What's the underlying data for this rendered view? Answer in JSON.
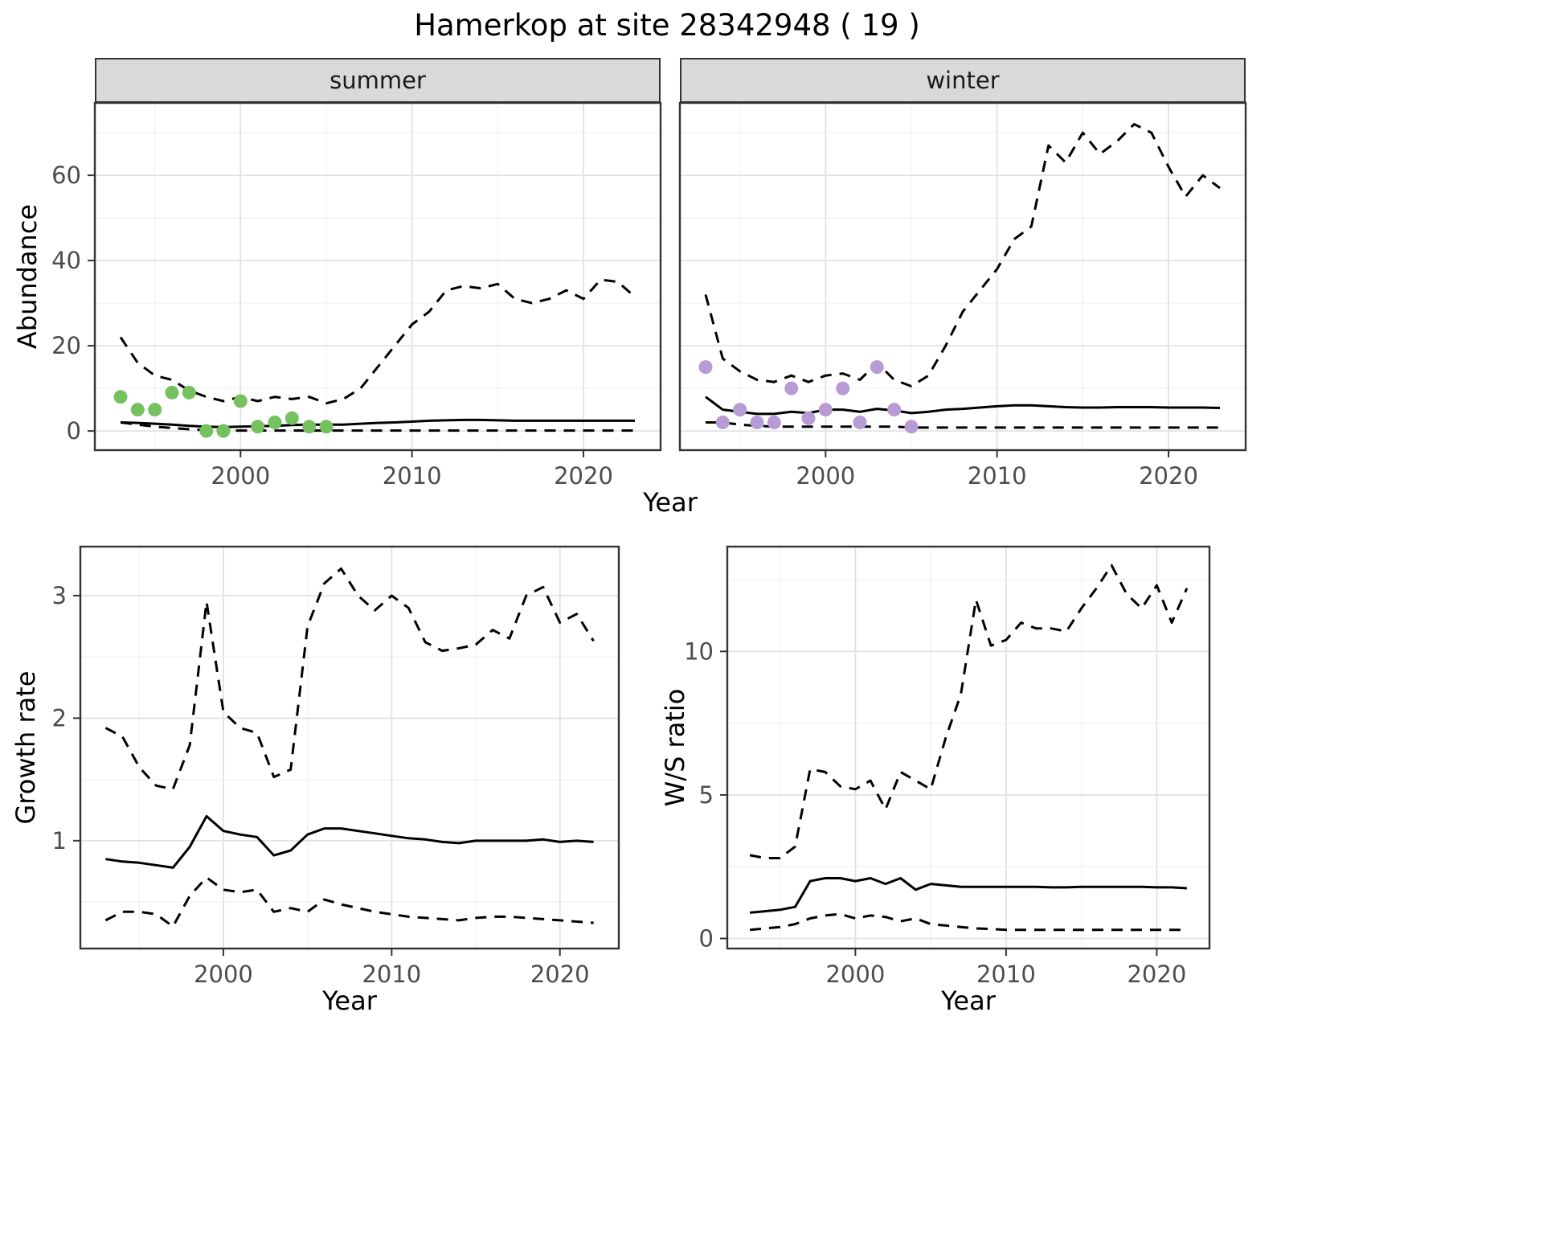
{
  "title": "Hamerkop at site 28342948 ( 19 )",
  "colors": {
    "summer_points": "#76c15f",
    "winter_points": "#b79bd4",
    "line": "#000000",
    "strip_bg": "#d9d9d9",
    "grid_major": "#e2e2e2",
    "grid_minor": "#efefef",
    "panel_border": "#333333",
    "tick_label": "#4d4d4d"
  },
  "chart_data": [
    {
      "id": "abundance-summer",
      "type": "line",
      "facet_label": "summer",
      "ylabel": "Abundance",
      "xlabel": "Year",
      "xlim": [
        1991.5,
        2024.5
      ],
      "ylim": [
        -4.5,
        77
      ],
      "xticks": [
        2000,
        2010,
        2020
      ],
      "yticks": [
        0,
        20,
        40,
        60
      ],
      "xticks_minor": [
        1995,
        2005,
        2015
      ],
      "yticks_minor": [
        10,
        30,
        50,
        70
      ],
      "years": [
        1993,
        1994,
        1995,
        1996,
        1997,
        1998,
        1999,
        2000,
        2001,
        2002,
        2003,
        2004,
        2005,
        2006,
        2007,
        2008,
        2009,
        2010,
        2011,
        2012,
        2013,
        2014,
        2015,
        2016,
        2017,
        2018,
        2019,
        2020,
        2021,
        2022,
        2023
      ],
      "series": [
        {
          "name": "median",
          "style": "solid",
          "values": [
            2.0,
            1.9,
            1.7,
            1.5,
            1.2,
            1.0,
            0.9,
            1.0,
            1.1,
            1.2,
            1.4,
            1.5,
            1.5,
            1.5,
            1.7,
            1.9,
            2.0,
            2.2,
            2.4,
            2.5,
            2.6,
            2.6,
            2.5,
            2.4,
            2.4,
            2.4,
            2.4,
            2.4,
            2.4,
            2.4,
            2.4
          ]
        },
        {
          "name": "upper-ci",
          "style": "dashed",
          "values": [
            22,
            16,
            13,
            12,
            9.5,
            8,
            7,
            8,
            7,
            8,
            7.5,
            8,
            6.5,
            7.5,
            10,
            15,
            20,
            25,
            28,
            33,
            34,
            33.5,
            34.5,
            31,
            30,
            31,
            33,
            31,
            35.5,
            35,
            31.5
          ]
        },
        {
          "name": "lower-ci",
          "style": "dashed",
          "values": [
            2,
            1.5,
            1,
            0.7,
            0.4,
            0.2,
            0.1,
            0.1,
            0.1,
            0.1,
            0.1,
            0.1,
            0.1,
            0.1,
            0.1,
            0.1,
            0.1,
            0.1,
            0.1,
            0.1,
            0.1,
            0.1,
            0.1,
            0.1,
            0.1,
            0.1,
            0.1,
            0.1,
            0.1,
            0.1,
            0.1
          ]
        }
      ],
      "points": {
        "name": "observed-summer-counts",
        "color_key": "summer_points",
        "years": [
          1993,
          1994,
          1995,
          1996,
          1997,
          1998,
          1999,
          2000,
          2001,
          2002,
          2003,
          2004,
          2005
        ],
        "values": [
          8,
          5,
          5,
          9,
          9,
          0,
          0,
          7,
          1,
          2,
          3,
          1,
          1
        ]
      }
    },
    {
      "id": "abundance-winter",
      "type": "line",
      "facet_label": "winter",
      "xlim": [
        1991.5,
        2024.5
      ],
      "ylim": [
        -4.5,
        77
      ],
      "xticks": [
        2000,
        2010,
        2020
      ],
      "yticks": [
        0,
        20,
        40,
        60
      ],
      "xticks_minor": [
        1995,
        2005,
        2015
      ],
      "yticks_minor": [
        10,
        30,
        50,
        70
      ],
      "years": [
        1993,
        1994,
        1995,
        1996,
        1997,
        1998,
        1999,
        2000,
        2001,
        2002,
        2003,
        2004,
        2005,
        2006,
        2007,
        2008,
        2009,
        2010,
        2011,
        2012,
        2013,
        2014,
        2015,
        2016,
        2017,
        2018,
        2019,
        2020,
        2021,
        2022,
        2023
      ],
      "series": [
        {
          "name": "median",
          "style": "solid",
          "values": [
            8,
            5,
            4.5,
            4,
            4,
            4.5,
            4.2,
            5,
            5,
            4.5,
            5.2,
            4.8,
            4.2,
            4.5,
            5,
            5.2,
            5.5,
            5.8,
            6,
            6,
            5.8,
            5.6,
            5.5,
            5.5,
            5.6,
            5.6,
            5.6,
            5.5,
            5.5,
            5.5,
            5.4
          ]
        },
        {
          "name": "upper-ci",
          "style": "dashed",
          "values": [
            32,
            17,
            14,
            12,
            11.5,
            13,
            11.5,
            13,
            13.5,
            12,
            16,
            12,
            10.5,
            13,
            20,
            28,
            33,
            38,
            45,
            48,
            67,
            63,
            70,
            65,
            68,
            72,
            70,
            62,
            55,
            60,
            57
          ]
        },
        {
          "name": "lower-ci",
          "style": "dashed",
          "values": [
            2,
            2,
            1.5,
            1.2,
            1,
            1,
            1,
            1,
            1,
            1,
            1,
            1,
            0.8,
            0.8,
            0.8,
            0.8,
            0.8,
            0.8,
            0.8,
            0.8,
            0.8,
            0.8,
            0.8,
            0.8,
            0.8,
            0.8,
            0.8,
            0.8,
            0.8,
            0.8,
            0.8
          ]
        }
      ],
      "points": {
        "name": "observed-winter-counts",
        "color_key": "winter_points",
        "years": [
          1993,
          1994,
          1995,
          1996,
          1997,
          1998,
          1999,
          2000,
          2001,
          2002,
          2003,
          2004,
          2005
        ],
        "values": [
          15,
          2,
          5,
          2,
          2,
          10,
          3,
          5,
          10,
          2,
          15,
          5,
          1
        ]
      }
    },
    {
      "id": "growth-rate",
      "type": "line",
      "ylabel": "Growth rate",
      "xlabel": "Year",
      "xlim": [
        1991.5,
        2023.5
      ],
      "ylim": [
        0.12,
        3.4
      ],
      "xticks": [
        2000,
        2010,
        2020
      ],
      "yticks": [
        1,
        2,
        3
      ],
      "xticks_minor": [
        1995,
        2005,
        2015
      ],
      "yticks_minor": [
        0.5,
        1.5,
        2.5
      ],
      "years": [
        1993,
        1994,
        1995,
        1996,
        1997,
        1998,
        1999,
        2000,
        2001,
        2002,
        2003,
        2004,
        2005,
        2006,
        2007,
        2008,
        2009,
        2010,
        2011,
        2012,
        2013,
        2014,
        2015,
        2016,
        2017,
        2018,
        2019,
        2020,
        2021,
        2022
      ],
      "series": [
        {
          "name": "median",
          "style": "solid",
          "values": [
            0.85,
            0.83,
            0.82,
            0.8,
            0.78,
            0.95,
            1.2,
            1.08,
            1.05,
            1.03,
            0.88,
            0.92,
            1.05,
            1.1,
            1.1,
            1.08,
            1.06,
            1.04,
            1.02,
            1.01,
            0.99,
            0.98,
            1.0,
            1.0,
            1.0,
            1.0,
            1.01,
            0.99,
            1.0,
            0.99
          ]
        },
        {
          "name": "upper-ci",
          "style": "dashed",
          "values": [
            1.92,
            1.85,
            1.6,
            1.45,
            1.42,
            1.78,
            2.95,
            2.05,
            1.92,
            1.88,
            1.52,
            1.58,
            2.75,
            3.1,
            3.22,
            3.0,
            2.88,
            3.0,
            2.9,
            2.62,
            2.55,
            2.57,
            2.6,
            2.72,
            2.65,
            3.0,
            3.07,
            2.78,
            2.85,
            2.63
          ]
        },
        {
          "name": "lower-ci",
          "style": "dashed",
          "values": [
            0.35,
            0.42,
            0.42,
            0.4,
            0.3,
            0.55,
            0.7,
            0.6,
            0.58,
            0.6,
            0.42,
            0.45,
            0.42,
            0.52,
            0.48,
            0.45,
            0.42,
            0.4,
            0.38,
            0.37,
            0.36,
            0.35,
            0.37,
            0.38,
            0.38,
            0.37,
            0.36,
            0.35,
            0.34,
            0.33
          ]
        }
      ]
    },
    {
      "id": "ws-ratio",
      "type": "line",
      "ylabel": "W/S ratio",
      "xlabel": "Year",
      "xlim": [
        1991.5,
        2023.5
      ],
      "ylim": [
        -0.35,
        13.65
      ],
      "xticks": [
        2000,
        2010,
        2020
      ],
      "yticks": [
        0,
        5,
        10
      ],
      "xticks_minor": [
        1995,
        2005,
        2015
      ],
      "yticks_minor": [
        2.5,
        7.5,
        12.5
      ],
      "years": [
        1993,
        1994,
        1995,
        1996,
        1997,
        1998,
        1999,
        2000,
        2001,
        2002,
        2003,
        2004,
        2005,
        2006,
        2007,
        2008,
        2009,
        2010,
        2011,
        2012,
        2013,
        2014,
        2015,
        2016,
        2017,
        2018,
        2019,
        2020,
        2021,
        2022
      ],
      "series": [
        {
          "name": "median",
          "style": "solid",
          "values": [
            0.9,
            0.95,
            1.0,
            1.1,
            2.0,
            2.1,
            2.1,
            2.0,
            2.1,
            1.9,
            2.1,
            1.7,
            1.9,
            1.85,
            1.8,
            1.8,
            1.8,
            1.8,
            1.8,
            1.8,
            1.78,
            1.78,
            1.8,
            1.8,
            1.8,
            1.8,
            1.8,
            1.78,
            1.78,
            1.75
          ]
        },
        {
          "name": "upper-ci",
          "style": "dashed",
          "values": [
            2.9,
            2.8,
            2.8,
            3.2,
            5.9,
            5.8,
            5.3,
            5.2,
            5.5,
            4.5,
            5.8,
            5.5,
            5.2,
            7.0,
            8.5,
            11.8,
            10.2,
            10.4,
            11.0,
            10.8,
            10.8,
            10.7,
            11.5,
            12.2,
            13.0,
            12.0,
            11.5,
            12.3,
            11.0,
            12.2
          ]
        },
        {
          "name": "lower-ci",
          "style": "dashed",
          "values": [
            0.3,
            0.35,
            0.4,
            0.5,
            0.7,
            0.8,
            0.85,
            0.7,
            0.8,
            0.75,
            0.6,
            0.7,
            0.5,
            0.45,
            0.4,
            0.35,
            0.33,
            0.3,
            0.3,
            0.3,
            0.3,
            0.3,
            0.3,
            0.3,
            0.3,
            0.3,
            0.3,
            0.3,
            0.3,
            0.3
          ]
        }
      ]
    }
  ]
}
